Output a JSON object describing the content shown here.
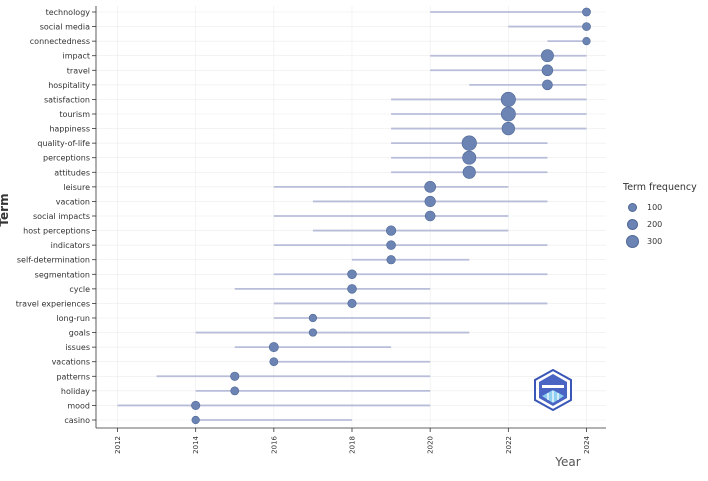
{
  "chart_data": {
    "type": "scatter",
    "title": "",
    "xlabel": "Year",
    "ylabel": "Term",
    "xlim": [
      2011.5,
      2024.5
    ],
    "xticks": [
      "2012",
      "2014",
      "2016",
      "2018",
      "2020",
      "2022",
      "2024"
    ],
    "grid": true,
    "legend": {
      "title": "Term frequency",
      "position": "right",
      "items": [
        "100",
        "200",
        "300"
      ]
    },
    "colors": {
      "point": "#6b84b3",
      "line": "#b8bdd9"
    },
    "terms": [
      {
        "term": "technology",
        "start": 2020,
        "median": 2024,
        "end": 2024,
        "freq": 40
      },
      {
        "term": "social media",
        "start": 2022,
        "median": 2024,
        "end": 2024,
        "freq": 40
      },
      {
        "term": "connectedness",
        "start": 2023,
        "median": 2024,
        "end": 2024,
        "freq": 30
      },
      {
        "term": "impact",
        "start": 2020,
        "median": 2023,
        "end": 2024,
        "freq": 180
      },
      {
        "term": "travel",
        "start": 2020,
        "median": 2023,
        "end": 2024,
        "freq": 120
      },
      {
        "term": "hospitality",
        "start": 2021,
        "median": 2023,
        "end": 2024,
        "freq": 90
      },
      {
        "term": "satisfaction",
        "start": 2019,
        "median": 2022,
        "end": 2024,
        "freq": 290
      },
      {
        "term": "tourism",
        "start": 2019,
        "median": 2022,
        "end": 2024,
        "freq": 280
      },
      {
        "term": "happiness",
        "start": 2019,
        "median": 2022,
        "end": 2024,
        "freq": 200
      },
      {
        "term": "quality-of-life",
        "start": 2019,
        "median": 2021,
        "end": 2023,
        "freq": 300
      },
      {
        "term": "perceptions",
        "start": 2019,
        "median": 2021,
        "end": 2023,
        "freq": 230
      },
      {
        "term": "attitudes",
        "start": 2019,
        "median": 2021,
        "end": 2023,
        "freq": 190
      },
      {
        "term": "leisure",
        "start": 2016,
        "median": 2020,
        "end": 2022,
        "freq": 130
      },
      {
        "term": "vacation",
        "start": 2017,
        "median": 2020,
        "end": 2023,
        "freq": 110
      },
      {
        "term": "social impacts",
        "start": 2016,
        "median": 2020,
        "end": 2022,
        "freq": 90
      },
      {
        "term": "host perceptions",
        "start": 2017,
        "median": 2019,
        "end": 2022,
        "freq": 80
      },
      {
        "term": "indicators",
        "start": 2016,
        "median": 2019,
        "end": 2023,
        "freq": 60
      },
      {
        "term": "self-determination",
        "start": 2018,
        "median": 2019,
        "end": 2021,
        "freq": 50
      },
      {
        "term": "segmentation",
        "start": 2016,
        "median": 2018,
        "end": 2023,
        "freq": 60
      },
      {
        "term": "cycle",
        "start": 2015,
        "median": 2018,
        "end": 2020,
        "freq": 60
      },
      {
        "term": "travel experiences",
        "start": 2016,
        "median": 2018,
        "end": 2023,
        "freq": 50
      },
      {
        "term": "long-run",
        "start": 2016,
        "median": 2017,
        "end": 2020,
        "freq": 30
      },
      {
        "term": "goals",
        "start": 2014,
        "median": 2017,
        "end": 2021,
        "freq": 30
      },
      {
        "term": "issues",
        "start": 2015,
        "median": 2016,
        "end": 2019,
        "freq": 70
      },
      {
        "term": "vacations",
        "start": 2016,
        "median": 2016,
        "end": 2020,
        "freq": 40
      },
      {
        "term": "patterns",
        "start": 2013,
        "median": 2015,
        "end": 2020,
        "freq": 50
      },
      {
        "term": "holiday",
        "start": 2014,
        "median": 2015,
        "end": 2020,
        "freq": 40
      },
      {
        "term": "mood",
        "start": 2012,
        "median": 2014,
        "end": 2020,
        "freq": 50
      },
      {
        "term": "casino",
        "start": 2014,
        "median": 2014,
        "end": 2018,
        "freq": 30
      }
    ]
  }
}
